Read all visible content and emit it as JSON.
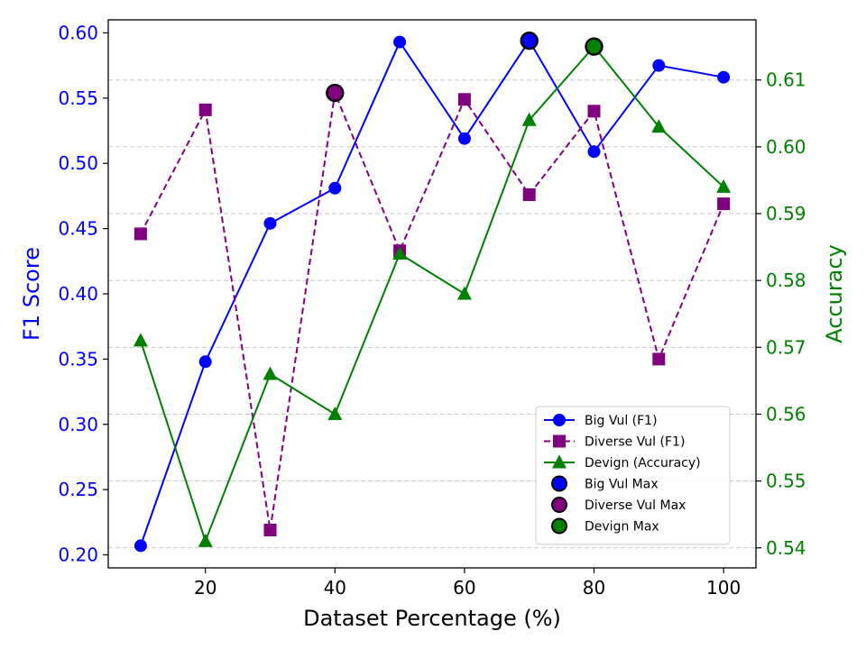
{
  "chart_data": {
    "type": "line",
    "x": [
      10,
      20,
      30,
      40,
      50,
      60,
      70,
      80,
      90,
      100
    ],
    "xlabel": "Dataset Percentage (%)",
    "ylabel_left": "F1 Score",
    "ylabel_right": "Accuracy",
    "xlim": [
      5,
      105
    ],
    "ylim_left": [
      0.19,
      0.61
    ],
    "ylim_right": [
      0.537,
      0.619
    ],
    "xticks": [
      20,
      40,
      60,
      80,
      100
    ],
    "xtick_labels": [
      "20",
      "40",
      "60",
      "80",
      "100"
    ],
    "yticks_left": [
      0.2,
      0.25,
      0.3,
      0.35,
      0.4,
      0.45,
      0.5,
      0.55,
      0.6
    ],
    "ytick_labels_left": [
      "0.20",
      "0.25",
      "0.30",
      "0.35",
      "0.40",
      "0.45",
      "0.50",
      "0.55",
      "0.60"
    ],
    "yticks_right": [
      0.54,
      0.55,
      0.56,
      0.57,
      0.58,
      0.59,
      0.6,
      0.61
    ],
    "ytick_labels_right": [
      "0.54",
      "0.55",
      "0.56",
      "0.57",
      "0.58",
      "0.59",
      "0.60",
      "0.61"
    ],
    "grid": "horizontal-dashed (right axis)",
    "legend_position": "lower-right",
    "series": [
      {
        "name": "Big Vul (F1)",
        "axis": "left",
        "color": "#0000ff",
        "marker": "circle",
        "dash": "solid",
        "values": [
          0.207,
          0.348,
          0.454,
          0.481,
          0.593,
          0.519,
          0.594,
          0.509,
          0.575,
          0.566
        ]
      },
      {
        "name": "Diverse Vul (F1)",
        "axis": "left",
        "color": "#800080",
        "marker": "square",
        "dash": "dashed",
        "values": [
          0.446,
          0.541,
          0.219,
          0.554,
          0.433,
          0.549,
          0.476,
          0.54,
          0.35,
          0.469
        ]
      },
      {
        "name": "Devign (Accuracy)",
        "axis": "right",
        "color": "#008000",
        "marker": "triangle",
        "dash": "solid",
        "values": [
          0.571,
          0.541,
          0.566,
          0.56,
          0.584,
          0.578,
          0.604,
          0.615,
          0.603,
          0.594
        ]
      }
    ],
    "max_markers": [
      {
        "name": "Big Vul Max",
        "axis": "left",
        "x": 70,
        "y": 0.594,
        "color": "#0000ff"
      },
      {
        "name": "Diverse Vul Max",
        "axis": "left",
        "x": 40,
        "y": 0.554,
        "color": "#800080"
      },
      {
        "name": "Devign Max",
        "axis": "right",
        "x": 80,
        "y": 0.615,
        "color": "#008000"
      }
    ],
    "left_axis_color": "#0000ff",
    "right_axis_color": "#008000"
  }
}
